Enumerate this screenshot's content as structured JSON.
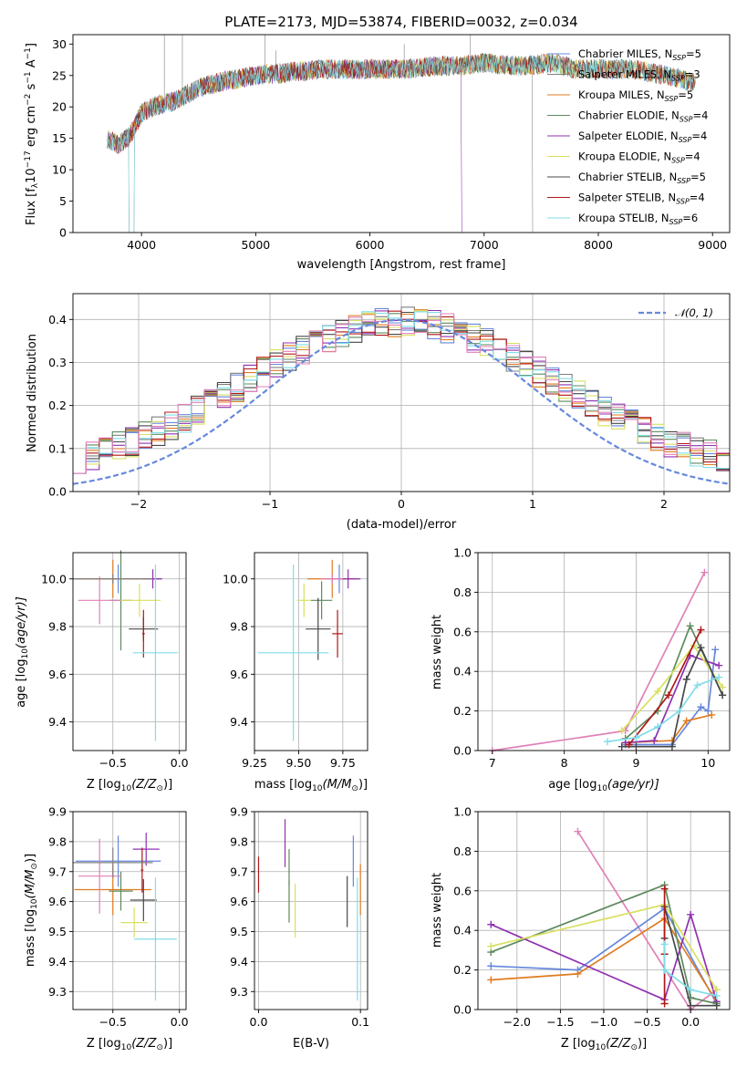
{
  "figure_title": "PLATE=2173, MJD=53874, FIBERID=0032, z=0.034",
  "palette": [
    "#6688dd",
    "#808080",
    "#e07b20",
    "#5e8a5e",
    "#9030b0",
    "#d9e060",
    "#484848",
    "#b01818",
    "#80dde8",
    "#e080b8"
  ],
  "models": [
    {
      "name": "Chabrier MILES",
      "nssp": "5",
      "color": "#6688dd"
    },
    {
      "name": "Salpeter MILES",
      "nssp": "3",
      "color": "#808080"
    },
    {
      "name": "Kroupa MILES",
      "nssp": "5",
      "color": "#e07b20"
    },
    {
      "name": "Chabrier ELODIE",
      "nssp": "4",
      "color": "#5e8a5e"
    },
    {
      "name": "Salpeter ELODIE",
      "nssp": "4",
      "color": "#9030b0"
    },
    {
      "name": "Kroupa ELODIE",
      "nssp": "4",
      "color": "#d9e060"
    },
    {
      "name": "Chabrier STELIB",
      "nssp": "5",
      "color": "#484848"
    },
    {
      "name": "Salpeter STELIB",
      "nssp": "4",
      "color": "#b01818"
    },
    {
      "name": "Kroupa STELIB",
      "nssp": "6",
      "color": "#80dde8"
    }
  ],
  "legend_nssp_prefix": "N",
  "legend_nssp_sub": "SSP",
  "chart_data": [
    {
      "id": "spectrum",
      "type": "line",
      "xlabel": "wavelength [Angstrom, rest frame]",
      "ylabel_main": "Flux [f",
      "ylabel_sub": "λ",
      "ylabel_rest": "10",
      "ylabel_exp": "−17",
      "ylabel_unit": " erg cm",
      "ylabel_unit_exp": "−2",
      "ylabel_unit2": " s",
      "ylabel_unit2_exp": "−1",
      "ylabel_unit3": " A",
      "ylabel_unit3_exp": "−1",
      "ylabel_close": "]",
      "xlim": [
        3400,
        9150
      ],
      "ylim": [
        0,
        31.5
      ],
      "xticks": [
        4000,
        5000,
        6000,
        7000,
        8000,
        9000
      ],
      "yticks": [
        0,
        5,
        10,
        15,
        20,
        25,
        30
      ],
      "continuum": [
        [
          3700,
          15
        ],
        [
          3800,
          14
        ],
        [
          3900,
          15.5
        ],
        [
          4000,
          19
        ],
        [
          4100,
          20
        ],
        [
          4200,
          20.5
        ],
        [
          4300,
          21
        ],
        [
          4400,
          22
        ],
        [
          4500,
          23
        ],
        [
          4700,
          24
        ],
        [
          5000,
          25
        ],
        [
          5300,
          25.5
        ],
        [
          5600,
          26
        ],
        [
          6000,
          26
        ],
        [
          6300,
          26
        ],
        [
          6600,
          26.5
        ],
        [
          6800,
          26.5
        ],
        [
          7000,
          27
        ],
        [
          7300,
          26.5
        ],
        [
          7600,
          27
        ],
        [
          7800,
          26
        ],
        [
          8000,
          26
        ],
        [
          8300,
          26
        ],
        [
          8600,
          25
        ],
        [
          8800,
          24
        ]
      ],
      "grid": false,
      "legend_position": "upper-right"
    },
    {
      "id": "residuals",
      "type": "histogram",
      "xlabel": "(data-model)/error",
      "ylabel": "Normed distribution",
      "xlim": [
        -2.5,
        2.5
      ],
      "ylim": [
        0,
        0.46
      ],
      "xticks": [
        -2,
        -1,
        0,
        1,
        2
      ],
      "xtick_labels": [
        "−2",
        "−1",
        "0",
        "1",
        "2"
      ],
      "yticks": [
        0.0,
        0.1,
        0.2,
        0.3,
        0.4
      ],
      "ytick_labels": [
        "0.0",
        "0.1",
        "0.2",
        "0.3",
        "0.4"
      ],
      "bin_width": 0.1,
      "grid": true,
      "gaussian_label": "𝒩(0, 1)",
      "legend_position": "upper-right"
    },
    {
      "id": "age-vs-Z",
      "type": "scatter",
      "xlabel_main": "Z [log",
      "xlabel_sub": "10",
      "xlabel_rest": "(Z/Z",
      "xlabel_sub2": "⊙",
      "xlabel_close": ")]",
      "ylabel_main": "age  [log",
      "ylabel_sub": "10",
      "ylabel_rest": "(age/yr)]",
      "xlim": [
        -0.8,
        0.05
      ],
      "ylim": [
        9.28,
        10.11
      ],
      "xticks": [
        -0.5,
        0.0
      ],
      "xtick_labels": [
        "−0.5",
        "0.0"
      ],
      "yticks": [
        9.4,
        9.6,
        9.8,
        10.0
      ],
      "ytick_labels": [
        "9.4",
        "9.6",
        "9.8",
        "10.0"
      ],
      "points": [
        {
          "x": -0.46,
          "y": 10.0,
          "xerr": 0.32,
          "yerr": 0.06,
          "color": "#6688dd"
        },
        {
          "x": -0.5,
          "y": 10.0,
          "xerr": 0.3,
          "yerr": 0.08,
          "color": "#e07b20"
        },
        {
          "x": -0.44,
          "y": 9.91,
          "xerr": 0.08,
          "yerr": 0.21,
          "color": "#5e8a5e"
        },
        {
          "x": -0.2,
          "y": 10.0,
          "xerr": 0.07,
          "yerr": 0.04,
          "color": "#9030b0"
        },
        {
          "x": -0.3,
          "y": 9.91,
          "xerr": 0.16,
          "yerr": 0.07,
          "color": "#d9e060"
        },
        {
          "x": -0.27,
          "y": 9.79,
          "xerr": 0.11,
          "yerr": 0.05,
          "color": "#484848"
        },
        {
          "x": -0.27,
          "y": 9.77,
          "xerr": 0.01,
          "yerr": 0.1,
          "color": "#b01818"
        },
        {
          "x": -0.18,
          "y": 9.69,
          "xerr": 0.17,
          "yerr": 0.37,
          "color": "#80dde8"
        },
        {
          "x": -0.6,
          "y": 9.91,
          "xerr": 0.16,
          "yerr": 0.1,
          "color": "#e080b8"
        },
        {
          "x": -0.5,
          "y": 10.0,
          "xerr": 0.3,
          "yerr": 0.02,
          "color": "#808080"
        }
      ]
    },
    {
      "id": "age-vs-mass",
      "type": "scatter",
      "xlabel_main": "mass [log",
      "xlabel_sub": "10",
      "xlabel_rest": "(M/M",
      "xlabel_sub2": "⊙",
      "xlabel_close": ")]",
      "xlim": [
        9.25,
        9.89
      ],
      "ylim": [
        9.28,
        10.11
      ],
      "xticks": [
        9.25,
        9.5,
        9.75
      ],
      "xtick_labels": [
        "9.25",
        "9.50",
        "9.75"
      ],
      "yticks": [
        9.4,
        9.6,
        9.8,
        10.0
      ],
      "ytick_labels": [
        "9.4",
        "9.6",
        "9.8",
        "10.0"
      ],
      "points": [
        {
          "x": 9.73,
          "y": 10.0,
          "xerr": 0.1,
          "yerr": 0.06,
          "color": "#6688dd"
        },
        {
          "x": 9.69,
          "y": 10.0,
          "xerr": 0.14,
          "yerr": 0.08,
          "color": "#e07b20"
        },
        {
          "x": 9.63,
          "y": 9.91,
          "xerr": 0.06,
          "yerr": 0.08,
          "color": "#5e8a5e"
        },
        {
          "x": 9.78,
          "y": 10.0,
          "xerr": 0.07,
          "yerr": 0.04,
          "color": "#9030b0"
        },
        {
          "x": 9.53,
          "y": 9.91,
          "xerr": 0.04,
          "yerr": 0.07,
          "color": "#d9e060"
        },
        {
          "x": 9.61,
          "y": 9.79,
          "xerr": 0.07,
          "yerr": 0.13,
          "color": "#484848"
        },
        {
          "x": 9.72,
          "y": 9.77,
          "xerr": 0.03,
          "yerr": 0.1,
          "color": "#b01818"
        },
        {
          "x": 9.47,
          "y": 9.69,
          "xerr": 0.2,
          "yerr": 0.37,
          "color": "#80dde8"
        },
        {
          "x": 9.69,
          "y": 10.0,
          "xerr": 0.06,
          "yerr": 0.02,
          "color": "#e080b8"
        }
      ]
    },
    {
      "id": "weight-vs-age",
      "type": "line",
      "xlabel_main": "age  [log",
      "xlabel_sub": "10",
      "xlabel_rest": "(age/yr)]",
      "ylabel": "mass weight",
      "xlim": [
        6.8,
        10.3
      ],
      "ylim": [
        0,
        1.0
      ],
      "xticks": [
        7,
        8,
        9,
        10
      ],
      "yticks": [
        0.0,
        0.2,
        0.4,
        0.6,
        0.8,
        1.0
      ],
      "ytick_labels": [
        "0.0",
        "0.2",
        "0.4",
        "0.6",
        "0.8",
        "1.0"
      ],
      "grid": true,
      "series": [
        {
          "color": "#e080b8",
          "x": [
            7.0,
            8.85,
            9.95
          ],
          "y": [
            0.0,
            0.1,
            0.9
          ]
        },
        {
          "color": "#6688dd",
          "x": [
            8.85,
            9.5,
            9.9,
            10.0,
            10.1
          ],
          "y": [
            0.03,
            0.03,
            0.22,
            0.2,
            0.51
          ]
        },
        {
          "color": "#e07b20",
          "x": [
            8.85,
            9.5,
            9.7,
            10.05
          ],
          "y": [
            0.04,
            0.05,
            0.15,
            0.18
          ]
        },
        {
          "color": "#5e8a5e",
          "x": [
            8.85,
            9.3,
            9.75,
            10.2
          ],
          "y": [
            0.06,
            0.2,
            0.63,
            0.28
          ]
        },
        {
          "color": "#9030b0",
          "x": [
            8.85,
            9.25,
            9.75,
            10.15
          ],
          "y": [
            0.04,
            0.05,
            0.48,
            0.43
          ]
        },
        {
          "color": "#d9e060",
          "x": [
            8.8,
            9.3,
            9.8,
            10.2
          ],
          "y": [
            0.1,
            0.3,
            0.53,
            0.32
          ]
        },
        {
          "color": "#484848",
          "x": [
            8.8,
            9.0,
            9.5,
            9.7,
            9.9,
            10.2
          ],
          "y": [
            0.02,
            0.02,
            0.02,
            0.36,
            0.52,
            0.28
          ]
        },
        {
          "color": "#b01818",
          "x": [
            8.9,
            9.45,
            9.9
          ],
          "y": [
            0.03,
            0.28,
            0.61
          ]
        },
        {
          "color": "#80dde8",
          "x": [
            8.6,
            9.0,
            9.3,
            9.6,
            9.85,
            10.15
          ],
          "y": [
            0.045,
            0.065,
            0.12,
            0.2,
            0.33,
            0.37
          ]
        }
      ]
    },
    {
      "id": "mass-vs-Z",
      "type": "scatter",
      "xlabel_main": "Z [log",
      "xlabel_sub": "10",
      "xlabel_rest": "(Z/Z",
      "xlabel_sub2": "⊙",
      "xlabel_close": ")]",
      "ylabel_main": "mass [log",
      "ylabel_sub": "10",
      "ylabel_rest": "(M/M",
      "ylabel_sub2": "⊙",
      "ylabel_close": ")]",
      "xlim": [
        -0.8,
        0.05
      ],
      "ylim": [
        9.24,
        9.9
      ],
      "xticks": [
        -0.5,
        0.0
      ],
      "xtick_labels": [
        "−0.5",
        "0.0"
      ],
      "yticks": [
        9.3,
        9.4,
        9.5,
        9.6,
        9.7,
        9.8,
        9.9
      ],
      "ytick_labels": [
        "9.3",
        "9.4",
        "9.5",
        "9.6",
        "9.7",
        "9.8",
        "9.9"
      ],
      "points": [
        {
          "x": -0.46,
          "y": 9.735,
          "xerr": 0.32,
          "yerr": 0.085,
          "color": "#6688dd"
        },
        {
          "x": -0.5,
          "y": 9.64,
          "xerr": 0.29,
          "yerr": 0.085,
          "color": "#e07b20"
        },
        {
          "x": -0.44,
          "y": 9.635,
          "xerr": 0.09,
          "yerr": 0.065,
          "color": "#5e8a5e"
        },
        {
          "x": -0.25,
          "y": 9.775,
          "xerr": 0.1,
          "yerr": 0.055,
          "color": "#9030b0"
        },
        {
          "x": -0.34,
          "y": 9.53,
          "xerr": 0.1,
          "yerr": 0.05,
          "color": "#d9e060"
        },
        {
          "x": -0.27,
          "y": 9.605,
          "xerr": 0.1,
          "yerr": 0.07,
          "color": "#484848"
        },
        {
          "x": -0.28,
          "y": 9.705,
          "xerr": 0.01,
          "yerr": 0.075,
          "color": "#b01818"
        },
        {
          "x": -0.18,
          "y": 9.475,
          "xerr": 0.16,
          "yerr": 0.205,
          "color": "#80dde8"
        },
        {
          "x": -0.6,
          "y": 9.685,
          "xerr": 0.16,
          "yerr": 0.125,
          "color": "#e080b8"
        },
        {
          "x": -0.5,
          "y": 9.73,
          "xerr": 0.3,
          "yerr": 0.05,
          "color": "#808080"
        }
      ]
    },
    {
      "id": "mass-vs-EBV",
      "type": "scatter",
      "xlabel": "E(B-V)",
      "xlim": [
        -0.004,
        0.107
      ],
      "ylim": [
        9.24,
        9.9
      ],
      "xticks": [
        0.0,
        0.1
      ],
      "xtick_labels": [
        "0.0",
        "0.1"
      ],
      "yticks": [
        9.3,
        9.4,
        9.5,
        9.6,
        9.7,
        9.8,
        9.9
      ],
      "ytick_labels": [
        "9.3",
        "9.4",
        "9.5",
        "9.6",
        "9.7",
        "9.8",
        "9.9"
      ],
      "points": [
        {
          "x": 0.0,
          "y": 9.69,
          "yerr": 0.06,
          "color": "#b01818"
        },
        {
          "x": 0.026,
          "y": 9.795,
          "yerr": 0.08,
          "color": "#9030b0"
        },
        {
          "x": 0.03,
          "y": 9.715,
          "yerr": 0.06,
          "color": "#5e8a5e"
        },
        {
          "x": 0.03,
          "y": 9.6,
          "yerr": 0.07,
          "color": "#5e8a5e"
        },
        {
          "x": 0.036,
          "y": 9.57,
          "yerr": 0.09,
          "color": "#d9e060"
        },
        {
          "x": 0.087,
          "y": 9.6,
          "yerr": 0.085,
          "color": "#484848"
        },
        {
          "x": 0.093,
          "y": 9.735,
          "yerr": 0.085,
          "color": "#6688dd"
        },
        {
          "x": 0.1,
          "y": 9.64,
          "yerr": 0.085,
          "color": "#e07b20"
        },
        {
          "x": 0.097,
          "y": 9.475,
          "yerr": 0.205,
          "color": "#80dde8"
        }
      ]
    },
    {
      "id": "weight-vs-Z",
      "type": "line",
      "xlabel_main": "Z [log",
      "xlabel_sub": "10",
      "xlabel_rest": "(Z/Z",
      "xlabel_sub2": "⊙",
      "xlabel_close": ")]",
      "ylabel": "mass weight",
      "xlim": [
        -2.45,
        0.45
      ],
      "ylim": [
        0,
        1.0
      ],
      "xticks": [
        -2.0,
        -1.5,
        -1.0,
        -0.5,
        0.0
      ],
      "xtick_labels": [
        "−2.0",
        "−1.5",
        "−1.0",
        "−0.5",
        "0.0"
      ],
      "yticks": [
        0.0,
        0.2,
        0.4,
        0.6,
        0.8,
        1.0
      ],
      "ytick_labels": [
        "0.0",
        "0.2",
        "0.4",
        "0.6",
        "0.8",
        "1.0"
      ],
      "grid": true,
      "series": [
        {
          "color": "#e080b8",
          "x": [
            -1.3,
            0.0,
            0.3
          ],
          "y": [
            0.9,
            0.0,
            0.1
          ]
        },
        {
          "color": "#6688dd",
          "x": [
            -2.3,
            -1.3,
            -0.3,
            0.3
          ],
          "y": [
            0.22,
            0.2,
            0.51,
            0.03
          ]
        },
        {
          "color": "#e07b20",
          "x": [
            -2.3,
            -1.3,
            -0.3,
            0.3
          ],
          "y": [
            0.15,
            0.18,
            0.46,
            0.04
          ]
        },
        {
          "color": "#5e8a5e",
          "x": [
            -2.3,
            -0.3,
            0.0,
            0.3
          ],
          "y": [
            0.29,
            0.63,
            0.06,
            0.03
          ]
        },
        {
          "color": "#9030b0",
          "x": [
            -2.3,
            -0.3,
            0.0,
            0.3
          ],
          "y": [
            0.43,
            0.05,
            0.48,
            0.04
          ]
        },
        {
          "color": "#d9e060",
          "x": [
            -2.3,
            -0.3,
            0.3
          ],
          "y": [
            0.32,
            0.53,
            0.1
          ]
        },
        {
          "color": "#484848",
          "x": [
            -0.3,
            -0.3,
            0.0,
            0.3
          ],
          "y": [
            0.36,
            0.52,
            0.02,
            0.02
          ]
        },
        {
          "color": "#b01818",
          "x": [
            -0.3,
            -0.3,
            -0.3
          ],
          "y": [
            0.28,
            0.61,
            0.03
          ]
        },
        {
          "color": "#80dde8",
          "x": [
            -0.3,
            -0.3,
            0.0,
            0.3
          ],
          "y": [
            0.33,
            0.2,
            0.1,
            0.07
          ]
        }
      ]
    }
  ]
}
